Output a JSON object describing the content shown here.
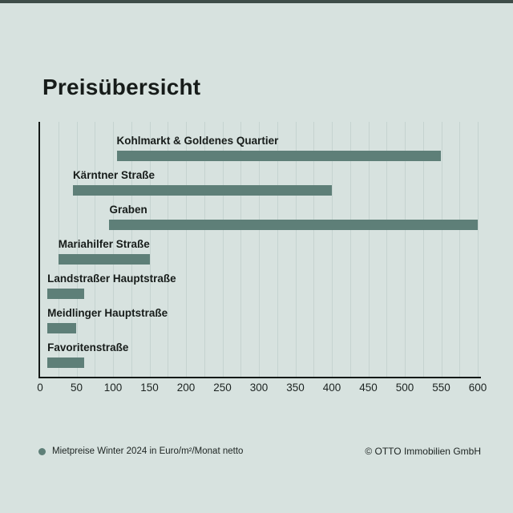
{
  "page": {
    "title": "Preisübersicht",
    "background_color": "#d7e2df",
    "top_border_color": "#3f4d49",
    "text_color": "#171c1a"
  },
  "chart_data": {
    "type": "bar",
    "orientation": "horizontal",
    "title": "Preisübersicht",
    "xlabel": "",
    "ylabel": "",
    "xlim": [
      0,
      600
    ],
    "x_ticks": [
      0,
      50,
      100,
      150,
      200,
      250,
      300,
      350,
      400,
      450,
      500,
      550,
      600
    ],
    "minor_grid_step": 25,
    "grid": true,
    "bar_color": "#5e7f78",
    "legend_position": "bottom-left",
    "value_unit": "Euro/m²/Monat netto",
    "categories": [
      "Kohlmarkt & Goldenes Quartier",
      "Kärntner Straße",
      "Graben",
      "Mariahilfer Straße",
      "Landstraßer Hauptstraße",
      "Meidlinger Hauptstraße",
      "Favoritenstraße"
    ],
    "series": [
      {
        "name": "Mietpreise Winter 2024 in Euro/m²/Monat netto",
        "ranges_min_max": [
          [
            105,
            550
          ],
          [
            45,
            400
          ],
          [
            95,
            600
          ],
          [
            25,
            150
          ],
          [
            10,
            60
          ],
          [
            10,
            50
          ],
          [
            10,
            60
          ]
        ]
      }
    ]
  },
  "legend": {
    "marker_color": "#5e7f78",
    "label": "Mietpreise Winter 2024 in Euro/m²/Monat netto"
  },
  "footer": {
    "copyright": "© OTTO Immobilien GmbH"
  }
}
